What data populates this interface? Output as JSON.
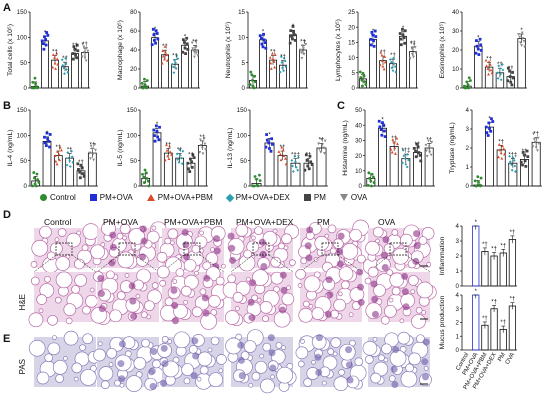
{
  "panel_letters": {
    "a": "A",
    "b": "B",
    "c": "C",
    "d": "D",
    "e": "E"
  },
  "legend": [
    {
      "label": "Control",
      "color": "#2e8b2e",
      "shape": "circle"
    },
    {
      "label": "PM+OVA",
      "color": "#1f2fd6",
      "shape": "square"
    },
    {
      "label": "PM+OVA+PBM",
      "color": "#d94a2a",
      "shape": "triangle"
    },
    {
      "label": "PM+OVA+DEX",
      "color": "#2a9fb0",
      "shape": "diamond"
    },
    {
      "label": "PM",
      "color": "#444444",
      "shape": "square"
    },
    {
      "label": "OVA",
      "color": "#888888",
      "shape": "triangle-down"
    }
  ],
  "histology": {
    "columns": [
      "Control",
      "PM+OVA",
      "PM+OVA+PBM",
      "PM+OVA+DEX",
      "PM",
      "OVA"
    ],
    "row_labels": {
      "he": "H&E",
      "pas": "PAS"
    }
  },
  "chart_data": [
    {
      "id": "total-cells",
      "type": "bar",
      "ylabel": "Total cells (x 10⁵)",
      "ylim": [
        0,
        150
      ],
      "yticks": [
        0,
        50,
        100,
        150
      ],
      "categories": [
        "Control",
        "PM+OVA",
        "PM+OVA+PBM",
        "PM+OVA+DEX",
        "PM",
        "OVA"
      ],
      "values": [
        3,
        93,
        55,
        42,
        68,
        70
      ],
      "annotations": [
        "",
        "*",
        "*†",
        "*†",
        "*†",
        "*†"
      ]
    },
    {
      "id": "macrophage",
      "type": "bar",
      "ylabel": "Macrophage (x 10⁵)",
      "ylim": [
        0,
        80
      ],
      "yticks": [
        0,
        20,
        40,
        60,
        80
      ],
      "categories": [
        "Control",
        "PM+OVA",
        "PM+OVA+PBM",
        "PM+OVA+DEX",
        "PM",
        "OVA"
      ],
      "values": [
        2,
        53,
        35,
        25,
        45,
        40
      ],
      "annotations": [
        "",
        "*",
        "*†",
        "*†",
        "*",
        "*†"
      ]
    },
    {
      "id": "neutrophils",
      "type": "bar",
      "ylabel": "Neutrophils (x 10⁵)",
      "ylim": [
        0,
        15
      ],
      "yticks": [
        0,
        5,
        10,
        15
      ],
      "categories": [
        "Control",
        "PM+OVA",
        "PM+OVA+PBM",
        "PM+OVA+DEX",
        "PM",
        "OVA"
      ],
      "values": [
        1.5,
        9.5,
        5.5,
        4.5,
        10.5,
        7.5
      ],
      "annotations": [
        "",
        "*",
        "*†",
        "*†",
        "*",
        "*†"
      ]
    },
    {
      "id": "lymphocytes",
      "type": "bar",
      "ylabel": "Lymphocytes (x 10⁵)",
      "ylim": [
        0,
        25
      ],
      "yticks": [
        0,
        5,
        10,
        15,
        20,
        25
      ],
      "categories": [
        "Control",
        "PM+OVA",
        "PM+OVA+PBM",
        "PM+OVA+DEX",
        "PM",
        "OVA"
      ],
      "values": [
        3,
        16,
        9,
        8,
        17,
        12
      ],
      "annotations": [
        "",
        "*",
        "*†",
        "*†",
        "*",
        "*†"
      ]
    },
    {
      "id": "eosinophils",
      "type": "bar",
      "ylabel": "Eosinophils (x 10⁵)",
      "ylim": [
        0,
        40
      ],
      "yticks": [
        0,
        10,
        20,
        30,
        40
      ],
      "categories": [
        "Control",
        "PM+OVA",
        "PM+OVA+PBM",
        "PM+OVA+DEX",
        "PM",
        "OVA"
      ],
      "values": [
        1,
        22,
        11,
        8,
        6,
        26
      ],
      "annotations": [
        "",
        "*",
        "*†",
        "*†",
        "*†",
        "*"
      ]
    },
    {
      "id": "il4",
      "type": "bar",
      "ylabel": "IL-4 (ng/mL)",
      "ylim": [
        0,
        150
      ],
      "yticks": [
        0,
        50,
        100,
        150
      ],
      "categories": [
        "Control",
        "PM+OVA",
        "PM+OVA+PBM",
        "PM+OVA+DEX",
        "PM",
        "OVA"
      ],
      "values": [
        10,
        88,
        60,
        55,
        30,
        65
      ],
      "annotations": [
        "",
        "*",
        "*†",
        "*†",
        "*†",
        "*†"
      ]
    },
    {
      "id": "il5",
      "type": "bar",
      "ylabel": "IL-5 (ng/mL)",
      "ylim": [
        0,
        150
      ],
      "yticks": [
        0,
        50,
        100,
        150
      ],
      "categories": [
        "Control",
        "PM+OVA",
        "PM+OVA+PBM",
        "PM+OVA+DEX",
        "PM",
        "OVA"
      ],
      "values": [
        15,
        105,
        65,
        55,
        45,
        80
      ],
      "annotations": [
        "",
        "*",
        "*†",
        "*†",
        "*†",
        "*†"
      ]
    },
    {
      "id": "il13",
      "type": "bar",
      "ylabel": "IL-13 (ng/mL)",
      "ylim": [
        0,
        150
      ],
      "yticks": [
        0,
        50,
        100,
        150
      ],
      "categories": [
        "Control",
        "PM+OVA",
        "PM+OVA+PBM",
        "PM+OVA+DEX",
        "PM",
        "OVA"
      ],
      "values": [
        5,
        85,
        60,
        45,
        45,
        75
      ],
      "annotations": [
        "",
        "*",
        "*†",
        "*†‡",
        "*†",
        "*†"
      ]
    },
    {
      "id": "histamine",
      "type": "bar",
      "ylabel": "Histamine (ng/mL)",
      "ylim": [
        0,
        50
      ],
      "yticks": [
        0,
        10,
        20,
        30,
        40,
        50
      ],
      "categories": [
        "Control",
        "PM+OVA",
        "PM+OVA+PBM",
        "PM+OVA+DEX",
        "PM",
        "OVA"
      ],
      "values": [
        5,
        38,
        26,
        18,
        22,
        25
      ],
      "annotations": [
        "",
        "*",
        "*†",
        "*†‡",
        "*†",
        "*†"
      ]
    },
    {
      "id": "tryptase",
      "type": "bar",
      "ylabel": "Tryptase (ng/mL)",
      "ylim": [
        0,
        4
      ],
      "yticks": [
        0,
        1,
        2,
        3,
        4
      ],
      "categories": [
        "Control",
        "PM+OVA",
        "PM+OVA+PBM",
        "PM+OVA+DEX",
        "PM",
        "OVA"
      ],
      "values": [
        0.05,
        3.1,
        1.9,
        1.2,
        1.4,
        2.3
      ],
      "annotations": [
        "",
        "*",
        "*†",
        "*†‡",
        "*†",
        "*†"
      ]
    },
    {
      "id": "inflammation",
      "type": "bar",
      "ylabel": "Inflammation",
      "ylim": [
        0,
        4
      ],
      "yticks": [
        0,
        1,
        2,
        3,
        4
      ],
      "categories": [
        "Control",
        "PM+OVA",
        "PM+OVA+PBM",
        "PM+OVA+DEX",
        "PM",
        "OVA"
      ],
      "values": [
        0,
        4.0,
        2.3,
        2.0,
        2.2,
        3.1
      ],
      "annotations": [
        "",
        "*",
        "*†",
        "*†",
        "*†",
        "*†"
      ]
    },
    {
      "id": "mucus",
      "type": "bar",
      "ylabel": "Mucus production",
      "ylim": [
        0,
        4
      ],
      "yticks": [
        0,
        1,
        2,
        3,
        4
      ],
      "categories": [
        "Control",
        "PM+OVA",
        "PM+OVA+PBM",
        "PM+OVA+DEX",
        "PM",
        "OVA"
      ],
      "values": [
        0,
        4.0,
        1.8,
        3.0,
        1.5,
        3.2
      ],
      "annotations": [
        "",
        "*",
        "*†",
        "*†",
        "*†",
        "*†"
      ]
    }
  ]
}
